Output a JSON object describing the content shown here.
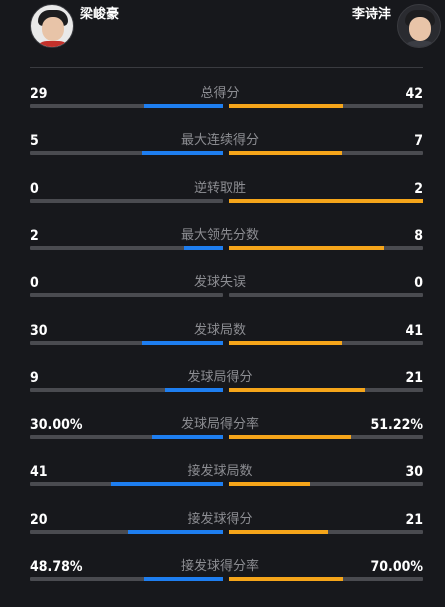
{
  "players": {
    "left": {
      "name": "梁峻豪",
      "color": "#1e7ef0"
    },
    "right": {
      "name": "李诗沣",
      "color": "#f5a51a"
    }
  },
  "stats": [
    {
      "label": "总得分",
      "left": "29",
      "right": "42",
      "left_fill": 0.41,
      "right_fill": 0.59
    },
    {
      "label": "最大连续得分",
      "left": "5",
      "right": "7",
      "left_fill": 0.42,
      "right_fill": 0.58
    },
    {
      "label": "逆转取胜",
      "left": "0",
      "right": "2",
      "left_fill": 0.0,
      "right_fill": 1.0
    },
    {
      "label": "最大领先分数",
      "left": "2",
      "right": "8",
      "left_fill": 0.2,
      "right_fill": 0.8
    },
    {
      "label": "发球失误",
      "left": "0",
      "right": "0",
      "left_fill": 0.0,
      "right_fill": 0.0
    },
    {
      "label": "发球局数",
      "left": "30",
      "right": "41",
      "left_fill": 0.42,
      "right_fill": 0.58
    },
    {
      "label": "发球局得分",
      "left": "9",
      "right": "21",
      "left_fill": 0.3,
      "right_fill": 0.7
    },
    {
      "label": "发球局得分率",
      "left": "30.00%",
      "right": "51.22%",
      "left_fill": 0.37,
      "right_fill": 0.63
    },
    {
      "label": "接发球局数",
      "left": "41",
      "right": "30",
      "left_fill": 0.58,
      "right_fill": 0.42
    },
    {
      "label": "接发球得分",
      "left": "20",
      "right": "21",
      "left_fill": 0.49,
      "right_fill": 0.51
    },
    {
      "label": "接发球得分率",
      "left": "48.78%",
      "right": "70.00%",
      "left_fill": 0.41,
      "right_fill": 0.59
    }
  ]
}
